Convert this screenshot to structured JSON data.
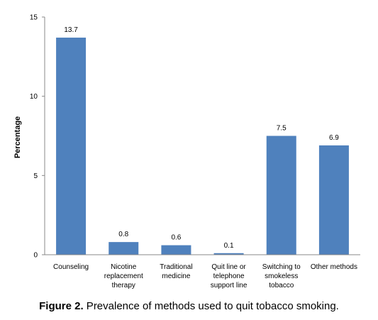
{
  "chart_data": {
    "type": "bar",
    "title": "",
    "xlabel": "",
    "ylabel": "Percentage",
    "ylim": [
      0,
      15
    ],
    "yticks": [
      0,
      5,
      10,
      15
    ],
    "grid": false,
    "legend": "none",
    "bar_color": "#4f81bd",
    "categories": [
      [
        "Counseling"
      ],
      [
        "Nicotine",
        "replacement",
        "therapy"
      ],
      [
        "Traditional",
        "medicine"
      ],
      [
        "Quit line or",
        "telephone",
        "support line"
      ],
      [
        "Switching to",
        "smokeless",
        "tobacco"
      ],
      [
        "Other methods"
      ]
    ],
    "values": [
      13.7,
      0.8,
      0.6,
      0.1,
      7.5,
      6.9
    ],
    "data_labels": [
      "13.7",
      "0.8",
      "0.6",
      "0.1",
      "7.5",
      "6.9"
    ]
  },
  "caption": {
    "label": "Figure 2.",
    "text": " Prevalence of methods used to quit tobacco smoking."
  }
}
